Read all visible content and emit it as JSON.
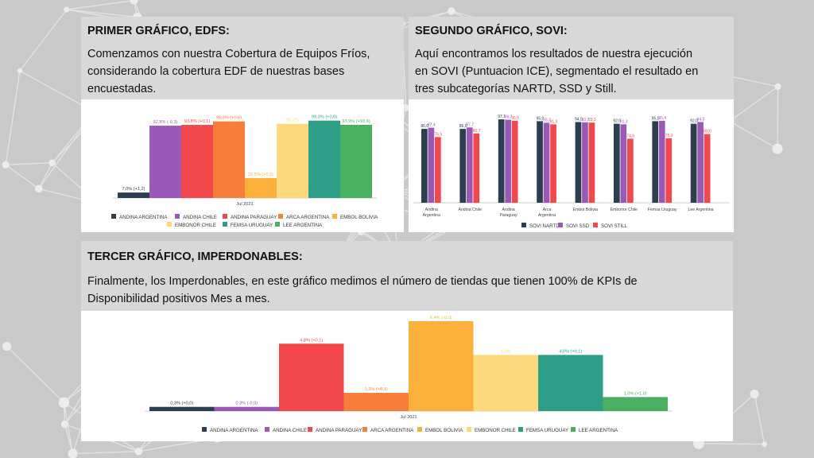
{
  "colors": {
    "andina_argentina": "#2c3e50",
    "andina_chile": "#9b59b6",
    "andina_paraguay": "#f2474d",
    "arca_argentina": "#f77e3a",
    "embol_bolivia": "#fbb03b",
    "embonor_chile": "#fcd97a",
    "femsa_uruguay": "#2e9e87",
    "lee_argentina": "#49b062"
  },
  "sections": {
    "edfs": {
      "title": "PRIMER GRÁFICO, EDFS:",
      "text_lines": [
        "Comenzamos con nuestra Cobertura de Equipos Fríos,",
        "considerando la cobertura EDF de nuestras bases",
        "encuestadas."
      ]
    },
    "sovi": {
      "title": "SEGUNDO GRÁFICO, SOVI:",
      "text_lines": [
        "Aquí encontramos los resultados de nuestra ejecución",
        "en SOVI (Puntuacion ICE), segmentado el resultado en",
        "tres subcategorías NARTD, SSD y Still."
      ]
    },
    "imperdonables": {
      "title": "TERCER GRÁFICO, IMPERDONABLES:",
      "text_lines": [
        "Finalmente, los Imperdonables, en este gráfico medimos el número de tiendas que tienen 100% de KPIs de",
        "Disponibilidad positivos Mes a mes."
      ]
    }
  },
  "chart_data": [
    {
      "type": "bar",
      "categories": [
        "Jul 2021"
      ],
      "ylim": [
        0,
        100
      ],
      "series": [
        {
          "name": "ANDINA ARGENTINA",
          "color_key": "andina_argentina",
          "value": 7.0,
          "label": "7,0% (+1,2)"
        },
        {
          "name": "ANDINA CHILE",
          "color_key": "andina_chile",
          "value": 92.8,
          "label": "92,8% (-0,3)"
        },
        {
          "name": "ANDINA PARAGUAY",
          "color_key": "andina_paraguay",
          "value": 93.8,
          "label": "93,8% (+0,1)"
        },
        {
          "name": "ARCA ARGENTINA",
          "color_key": "arca_argentina",
          "value": 98.3,
          "label": "98,3% (+0,0)"
        },
        {
          "name": "EMBOL BOLIVIA",
          "color_key": "embol_bolivia",
          "value": 25.5,
          "label": "25,5% (+0,2)"
        },
        {
          "name": "EMBONOR CHILE",
          "color_key": "embonor_chile",
          "value": 95.2,
          "label": "95,2%"
        },
        {
          "name": "FEMSA URUGUAY",
          "color_key": "femsa_uruguay",
          "value": 99.3,
          "label": "99,3% (+0,0)"
        },
        {
          "name": "LEE ARGENTINA",
          "color_key": "lee_argentina",
          "value": 93.9,
          "label": "93,9% (+93,9)"
        }
      ]
    },
    {
      "type": "bar",
      "categories": [
        "Andina Argentina",
        "Andina Chile",
        "Andina Paraguay",
        "Arca Argentina",
        "Embol Bolivia",
        "Embonor Chile",
        "Femsa Uruguay",
        "Lee Argentina"
      ],
      "ylim": [
        0,
        100
      ],
      "series": [
        {
          "name": "SOVI NARTD",
          "color": "#2c3e50",
          "values": [
            86.0,
            86.0,
            97.1,
            95.0,
            94.0,
            92.0,
            95.0,
            92.0
          ],
          "labels": [
            "86,0",
            "86,0",
            "97,1",
            "95,0",
            "94,0",
            "92,0",
            "95,0",
            "92,0"
          ]
        },
        {
          "name": "SOVI SSD",
          "color": "#9b59b6",
          "values": [
            87.4,
            87.7,
            96.7,
            93.2,
            93.7,
            91.3,
            95.4,
            94.0
          ],
          "labels": [
            "87,4",
            "87,7",
            "96,7",
            "93,2",
            "93,7",
            "91,3",
            "95,4",
            "94,0"
          ]
        },
        {
          "name": "SOVI STILL",
          "color": "#f2474d",
          "values": [
            76.5,
            80.7,
            95.5,
            91.3,
            93.3,
            74.6,
            75.2,
            80.0
          ],
          "labels": [
            "76,5",
            "80,7",
            "95,5",
            "91,3",
            "93,3",
            "74,6",
            "75,2",
            "80,0"
          ]
        }
      ]
    },
    {
      "type": "bar",
      "categories": [
        "Jul 2021"
      ],
      "ylim": [
        0,
        6.4
      ],
      "series": [
        {
          "name": "ANDINA ARGENTINA",
          "color_key": "andina_argentina",
          "value": 0.3,
          "label": "0,3% (+0,0)"
        },
        {
          "name": "ANDINA CHILE",
          "color_key": "andina_chile",
          "value": 0.3,
          "label": "0,3% (-0,0)"
        },
        {
          "name": "ANDINA PARAGUAY",
          "color_key": "andina_paraguay",
          "value": 4.8,
          "label": "4,8% (+0,1)"
        },
        {
          "name": "ARCA ARGENTINA",
          "color_key": "arca_argentina",
          "value": 1.3,
          "label": "1,3% (+0,1)"
        },
        {
          "name": "EMBOL BOLIVIA",
          "color_key": "embol_bolivia",
          "value": 6.4,
          "label": "6,4% (-0,0)"
        },
        {
          "name": "EMBONOR CHILE",
          "color_key": "embonor_chile",
          "value": 4.0,
          "label": "4,0%"
        },
        {
          "name": "FEMSA URUGUAY",
          "color_key": "femsa_uruguay",
          "value": 4.0,
          "label": "4,0% (+0,1)"
        },
        {
          "name": "LEE ARGENTINA",
          "color_key": "lee_argentina",
          "value": 1.0,
          "label": "1,0% (+1,0)"
        }
      ]
    }
  ]
}
